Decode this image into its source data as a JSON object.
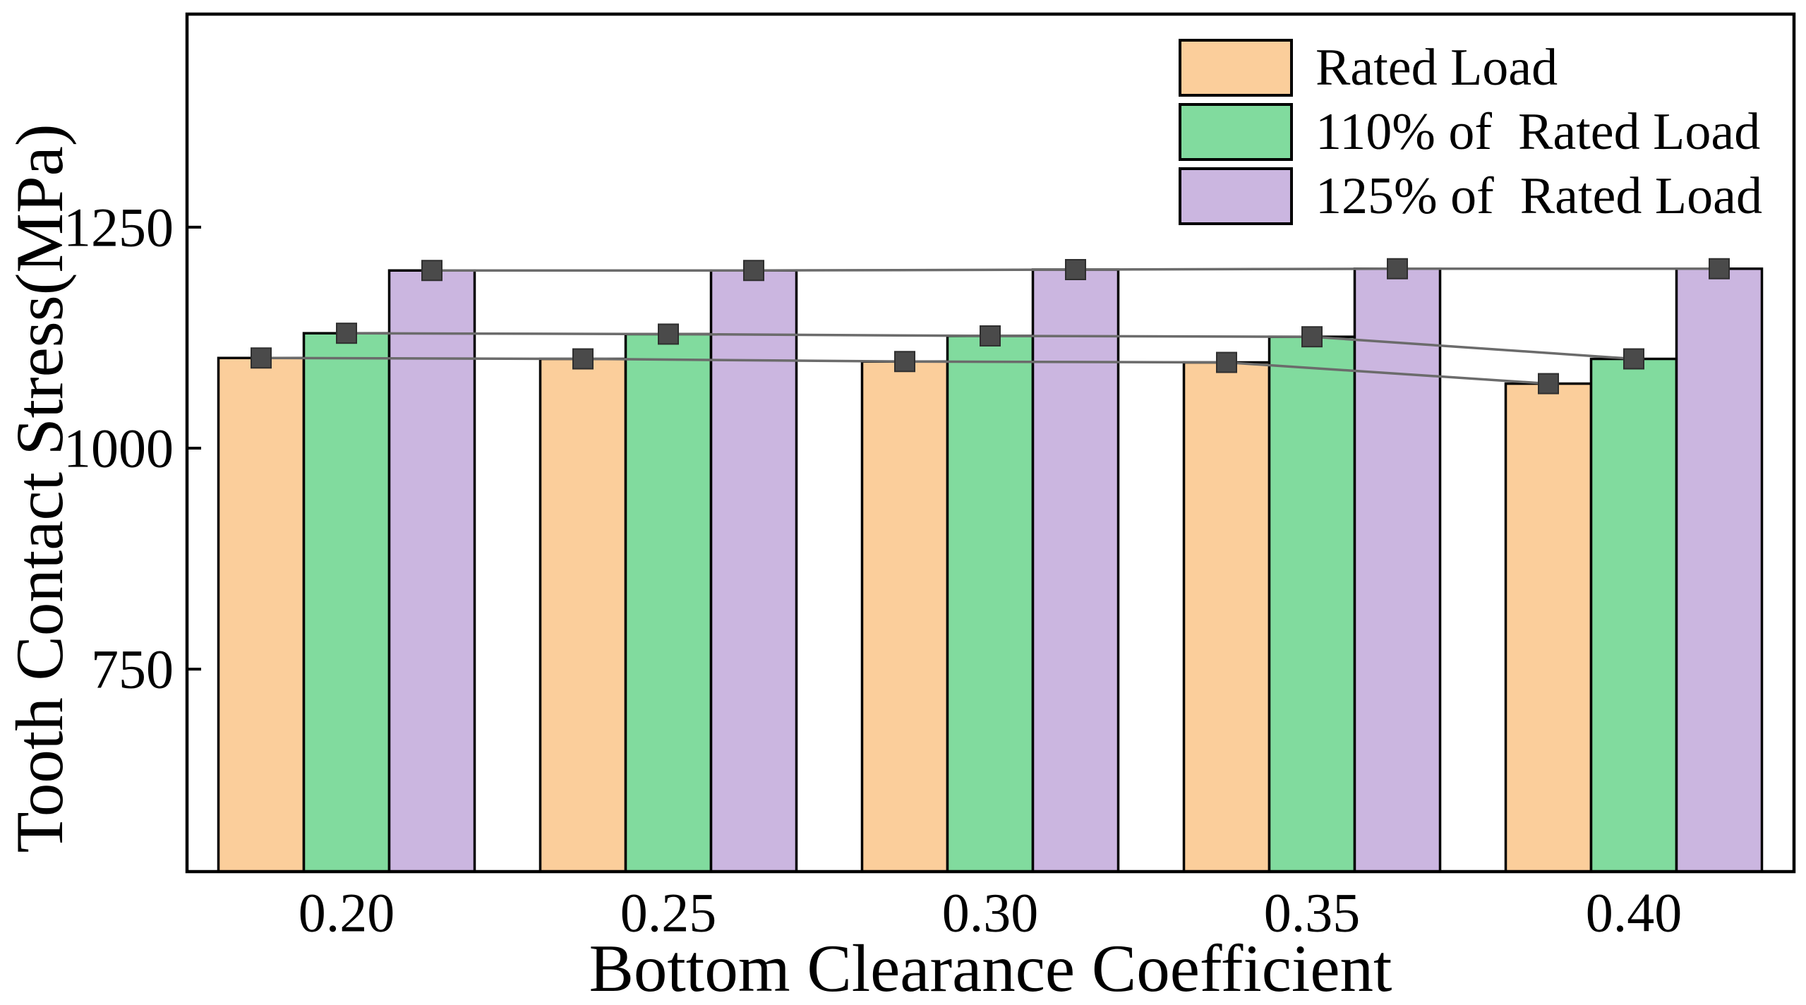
{
  "figure": {
    "background": "#FFFFFF",
    "description": "Grouped bar chart with square markers and gray connector lines at bar tops"
  },
  "chart_data": {
    "type": "bar",
    "title": "",
    "xlabel": "Bottom Clearance Coefficient",
    "ylabel": "Tooth Contact Stress(MPa)",
    "categories": [
      "0.20",
      "0.25",
      "0.30",
      "0.35",
      "0.40"
    ],
    "series": [
      {
        "name": "Rated Load",
        "color": "#FBCE9B",
        "values": [
          1102,
          1101,
          1098,
          1097,
          1073
        ]
      },
      {
        "name": "110% of  Rated Load",
        "color": "#81DB9E",
        "values": [
          1130,
          1129,
          1127,
          1126,
          1101
        ]
      },
      {
        "name": "125% of  Rated Load",
        "color": "#CBB6E0",
        "values": [
          1201,
          1201,
          1202,
          1203,
          1203
        ]
      }
    ],
    "y_ticks": [
      750,
      1000,
      1250
    ],
    "ylim": [
      521,
      1491
    ],
    "grid": false,
    "legend_position": "top-right",
    "bar_border_color": "#000000",
    "marker": {
      "shape": "square",
      "color": "#4A4A4A"
    },
    "line_color": "#6B6B6B",
    "axis_color": "#000000"
  }
}
